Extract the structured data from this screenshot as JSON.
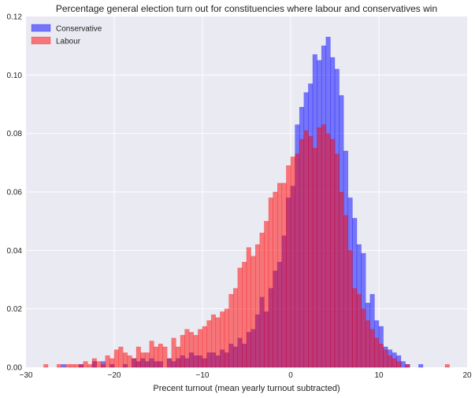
{
  "chart_data": {
    "type": "bar",
    "subtype": "overlapping-histogram",
    "title": "Percentage general election turn out for constituencies where labour and conservatives win",
    "xlabel": "Precent turnout (mean yearly turnout subtracted)",
    "ylabel": "",
    "xlim": [
      -30,
      20
    ],
    "ylim": [
      0,
      0.12
    ],
    "xticks": [
      -30,
      -20,
      -10,
      0,
      10,
      20
    ],
    "yticks": [
      0.0,
      0.02,
      0.04,
      0.06,
      0.08,
      0.1,
      0.12
    ],
    "xtick_labels": [
      "−30",
      "−20",
      "−10",
      "0",
      "10",
      "20"
    ],
    "ytick_labels": [
      "0.00",
      "0.02",
      "0.04",
      "0.06",
      "0.08",
      "0.10",
      "0.12"
    ],
    "grid": true,
    "background_color": "#eaeaf2",
    "legend_position": "top-left",
    "bin_width": 0.5,
    "series": [
      {
        "name": "Conservative",
        "color": "#0000ff",
        "alpha": 0.5,
        "bins": [
          [
            -26,
            0.001
          ],
          [
            -24,
            0.001
          ],
          [
            -22.5,
            0.002
          ],
          [
            -21.5,
            0.002
          ],
          [
            -20.5,
            0.001
          ],
          [
            -19,
            0.001
          ],
          [
            -18,
            0.003
          ],
          [
            -17.5,
            0.002
          ],
          [
            -17,
            0.003
          ],
          [
            -16.5,
            0.002
          ],
          [
            -16,
            0.003
          ],
          [
            -15.5,
            0.002
          ],
          [
            -15,
            0.002
          ],
          [
            -14,
            0.003
          ],
          [
            -13.5,
            0.002
          ],
          [
            -13,
            0.003
          ],
          [
            -12.5,
            0.004
          ],
          [
            -12,
            0.003
          ],
          [
            -11.5,
            0.005
          ],
          [
            -11,
            0.004
          ],
          [
            -10.5,
            0.004
          ],
          [
            -10,
            0.003
          ],
          [
            -9.5,
            0.005
          ],
          [
            -9,
            0.005
          ],
          [
            -8.5,
            0.004
          ],
          [
            -8,
            0.006
          ],
          [
            -7.5,
            0.005
          ],
          [
            -7,
            0.008
          ],
          [
            -6.5,
            0.007
          ],
          [
            -6,
            0.01
          ],
          [
            -5.5,
            0.008
          ],
          [
            -5,
            0.012
          ],
          [
            -4.5,
            0.013
          ],
          [
            -4,
            0.018
          ],
          [
            -3.5,
            0.024
          ],
          [
            -3,
            0.019
          ],
          [
            -2.5,
            0.027
          ],
          [
            -2,
            0.033
          ],
          [
            -1.5,
            0.036
          ],
          [
            -1,
            0.045
          ],
          [
            -0.5,
            0.058
          ],
          [
            0,
            0.062
          ],
          [
            0.5,
            0.083
          ],
          [
            1,
            0.089
          ],
          [
            1.5,
            0.094
          ],
          [
            2,
            0.097
          ],
          [
            2.5,
            0.107
          ],
          [
            3,
            0.105
          ],
          [
            3.5,
            0.11
          ],
          [
            4,
            0.113
          ],
          [
            4.5,
            0.106
          ],
          [
            5,
            0.102
          ],
          [
            5.5,
            0.093
          ],
          [
            6,
            0.074
          ],
          [
            6.5,
            0.058
          ],
          [
            7,
            0.051
          ],
          [
            7.5,
            0.042
          ],
          [
            8,
            0.039
          ],
          [
            8.5,
            0.022
          ],
          [
            9,
            0.025
          ],
          [
            9.5,
            0.016
          ],
          [
            10,
            0.014
          ],
          [
            10.5,
            0.007
          ],
          [
            11,
            0.006
          ],
          [
            11.5,
            0.005
          ],
          [
            12,
            0.004
          ],
          [
            12.5,
            0.002
          ],
          [
            13,
            0.001
          ],
          [
            14.5,
            0.001
          ]
        ]
      },
      {
        "name": "Labour",
        "color": "#ff0000",
        "alpha": 0.5,
        "bins": [
          [
            -28,
            0.001
          ],
          [
            -26.5,
            0.001
          ],
          [
            -25.5,
            0.001
          ],
          [
            -25,
            0.001
          ],
          [
            -24.5,
            0.001
          ],
          [
            -24,
            0.001
          ],
          [
            -23.5,
            0.002
          ],
          [
            -23,
            0.001
          ],
          [
            -22.5,
            0.003
          ],
          [
            -22,
            0.002
          ],
          [
            -21.5,
            0.001
          ],
          [
            -21,
            0.004
          ],
          [
            -20.5,
            0.003
          ],
          [
            -20,
            0.006
          ],
          [
            -19.5,
            0.007
          ],
          [
            -19,
            0.005
          ],
          [
            -18.5,
            0.004
          ],
          [
            -18,
            0.003
          ],
          [
            -17.5,
            0.007
          ],
          [
            -17,
            0.005
          ],
          [
            -16.5,
            0.005
          ],
          [
            -16,
            0.009
          ],
          [
            -15.5,
            0.007
          ],
          [
            -15,
            0.008
          ],
          [
            -14.5,
            0.007
          ],
          [
            -14,
            0.003
          ],
          [
            -13.5,
            0.01
          ],
          [
            -13,
            0.007
          ],
          [
            -12.5,
            0.011
          ],
          [
            -12,
            0.013
          ],
          [
            -11.5,
            0.012
          ],
          [
            -11,
            0.011
          ],
          [
            -10.5,
            0.013
          ],
          [
            -10,
            0.014
          ],
          [
            -9.5,
            0.016
          ],
          [
            -9,
            0.018
          ],
          [
            -8.5,
            0.017
          ],
          [
            -8,
            0.019
          ],
          [
            -7.5,
            0.02
          ],
          [
            -7,
            0.025
          ],
          [
            -6.5,
            0.027
          ],
          [
            -6,
            0.034
          ],
          [
            -5.5,
            0.036
          ],
          [
            -5,
            0.041
          ],
          [
            -4.5,
            0.038
          ],
          [
            -4,
            0.042
          ],
          [
            -3.5,
            0.046
          ],
          [
            -3,
            0.05
          ],
          [
            -2.5,
            0.058
          ],
          [
            -2,
            0.06
          ],
          [
            -1.5,
            0.063
          ],
          [
            -1,
            0.063
          ],
          [
            -0.5,
            0.069
          ],
          [
            0,
            0.072
          ],
          [
            0.5,
            0.073
          ],
          [
            1,
            0.078
          ],
          [
            1.5,
            0.081
          ],
          [
            2,
            0.079
          ],
          [
            2.5,
            0.075
          ],
          [
            3,
            0.082
          ],
          [
            3.5,
            0.083
          ],
          [
            4,
            0.08
          ],
          [
            4.5,
            0.078
          ],
          [
            5,
            0.073
          ],
          [
            5.5,
            0.06
          ],
          [
            6,
            0.052
          ],
          [
            6.5,
            0.04
          ],
          [
            7,
            0.027
          ],
          [
            7.5,
            0.025
          ],
          [
            8,
            0.02
          ],
          [
            8.5,
            0.016
          ],
          [
            9,
            0.013
          ],
          [
            9.5,
            0.01
          ],
          [
            10,
            0.008
          ],
          [
            10.5,
            0.006
          ],
          [
            11,
            0.004
          ],
          [
            11.5,
            0.003
          ],
          [
            12,
            0.002
          ],
          [
            13,
            0.001
          ],
          [
            17.5,
            0.001
          ]
        ]
      }
    ]
  }
}
